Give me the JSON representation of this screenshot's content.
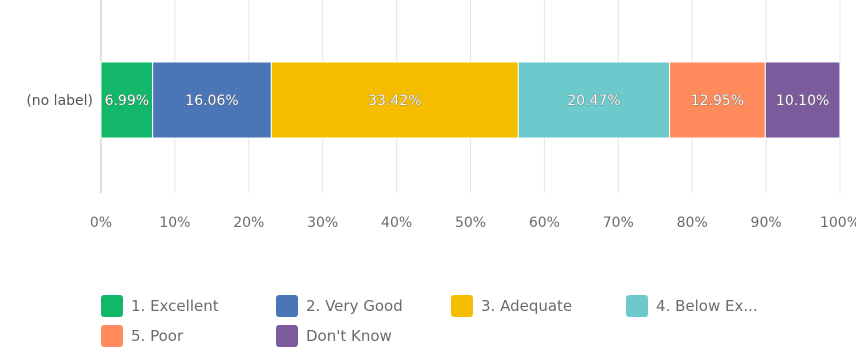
{
  "chart_data": {
    "type": "bar",
    "orientation": "horizontal",
    "stacked": true,
    "percent": true,
    "categories": [
      "(no label)"
    ],
    "series": [
      {
        "name": "1. Excellent",
        "values": [
          6.99
        ],
        "label": "6.99%",
        "color": "#12b76a"
      },
      {
        "name": "2. Very Good",
        "values": [
          16.06
        ],
        "label": "16.06%",
        "color": "#4a76b8"
      },
      {
        "name": "3. Adequate",
        "values": [
          33.42
        ],
        "label": "33.42%",
        "color": "#f5bd00"
      },
      {
        "name": "4. Below Ex...",
        "values": [
          20.47
        ],
        "label": "20.47%",
        "color": "#6cc9cc"
      },
      {
        "name": "5. Poor",
        "values": [
          12.95
        ],
        "label": "12.95%",
        "color": "#ff8a5c"
      },
      {
        "name": "Don't Know",
        "values": [
          10.1
        ],
        "label": "10.10%",
        "color": "#7b5b9b"
      }
    ],
    "xlim": [
      0,
      100
    ],
    "xticks": [
      "0%",
      "10%",
      "20%",
      "30%",
      "40%",
      "50%",
      "60%",
      "70%",
      "80%",
      "90%",
      "100%"
    ],
    "grid": true,
    "legend_position": "bottom"
  }
}
